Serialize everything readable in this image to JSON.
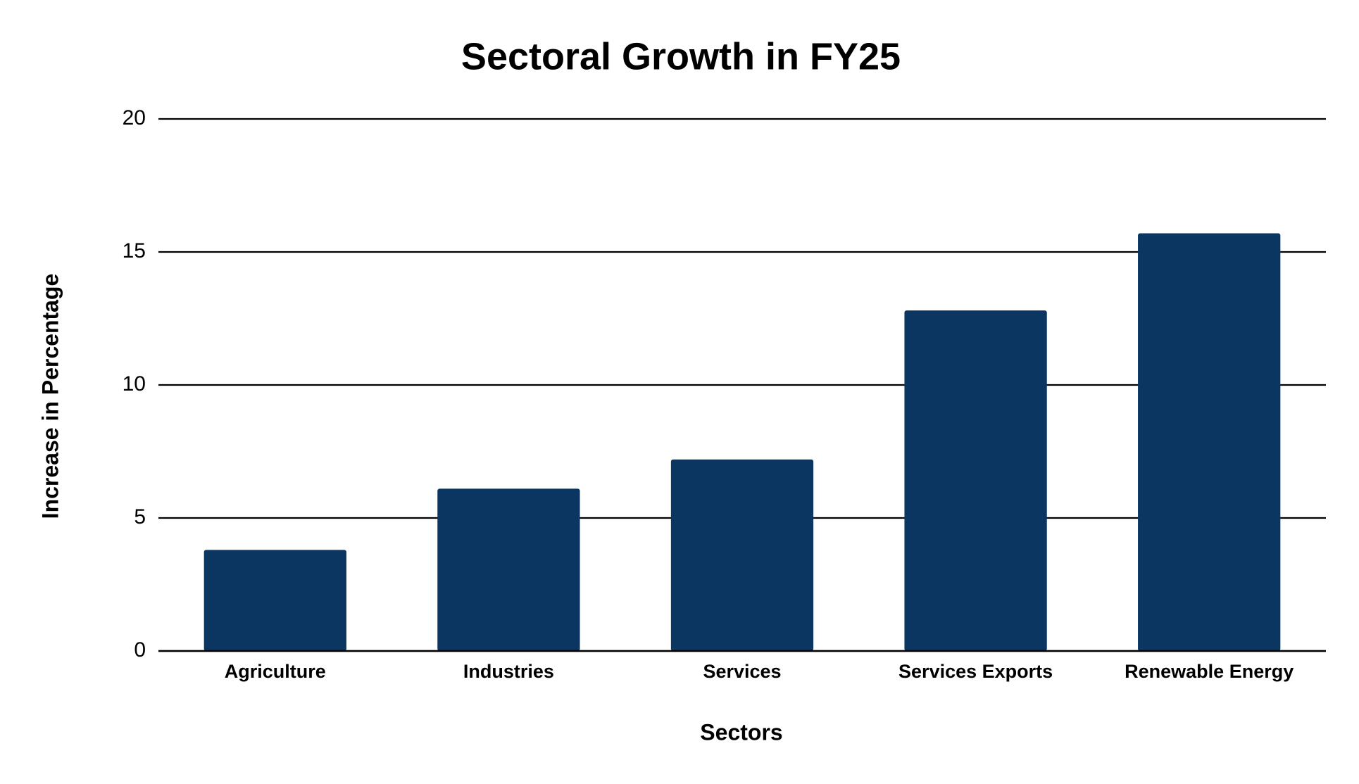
{
  "chart_data": {
    "type": "bar",
    "title": "Sectoral Growth in FY25",
    "x_label": "Sectors",
    "y_label": "Increase in Percentage",
    "categories": [
      "Agriculture",
      "Industries",
      "Services",
      "Services Exports",
      "Renewable Energy"
    ],
    "values": [
      3.8,
      6.1,
      7.2,
      12.8,
      15.7
    ],
    "color": "#0a3661",
    "ylim": [
      0,
      20
    ],
    "yticks": [
      0,
      5,
      10,
      15,
      20
    ],
    "grid": true
  }
}
